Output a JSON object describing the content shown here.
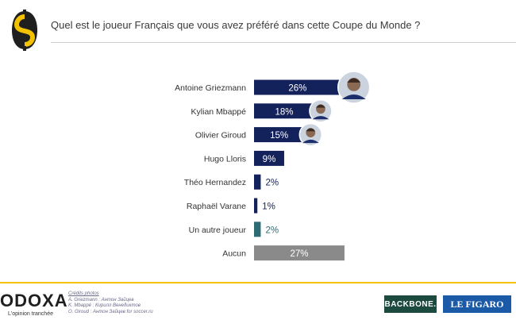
{
  "header": {
    "question": "Quel est le joueur Français que vous avez préféré dans cette Coupe du Monde ?"
  },
  "chart_data": {
    "type": "bar",
    "orientation": "horizontal",
    "title": "",
    "xlabel": "",
    "ylabel": "",
    "xlim": [
      0,
      30
    ],
    "grid": false,
    "categories": [
      "Antoine Griezmann",
      "Kylian Mbappé",
      "Olivier Giroud",
      "Hugo Lloris",
      "Théo Hernandez",
      "Raphaël Varane",
      "Un autre joueur",
      "Aucun"
    ],
    "values": [
      26,
      18,
      15,
      9,
      2,
      1,
      2,
      27
    ],
    "value_labels": [
      "26%",
      "18%",
      "15%",
      "9%",
      "2%",
      "1%",
      "2%",
      "27%"
    ],
    "bar_colors": [
      "#14225c",
      "#14225c",
      "#14225c",
      "#14225c",
      "#14225c",
      "#14225c",
      "#2e6b73",
      "#8a8a8a"
    ],
    "player_photos": [
      "Antoine Griezmann",
      "Kylian Mbappé",
      "Olivier Giroud"
    ]
  },
  "footer": {
    "brand": "ODOXA",
    "tagline": "L'opinion tranchée",
    "credits_title": "Crédits photos",
    "credits": [
      "A. Griezmann : Антон Зайцев",
      "K. Mbappé : Кирилл Венедиктов",
      "O. Giroud : Антон Зайцев for soccer.ru"
    ],
    "partner1": "BACKBONE.",
    "partner2": "LE FIGARO"
  },
  "colors": {
    "bar_primary": "#14225c",
    "bar_other": "#2e6b73",
    "bar_none": "#8a8a8a",
    "accent_yellow": "#f2c200"
  }
}
